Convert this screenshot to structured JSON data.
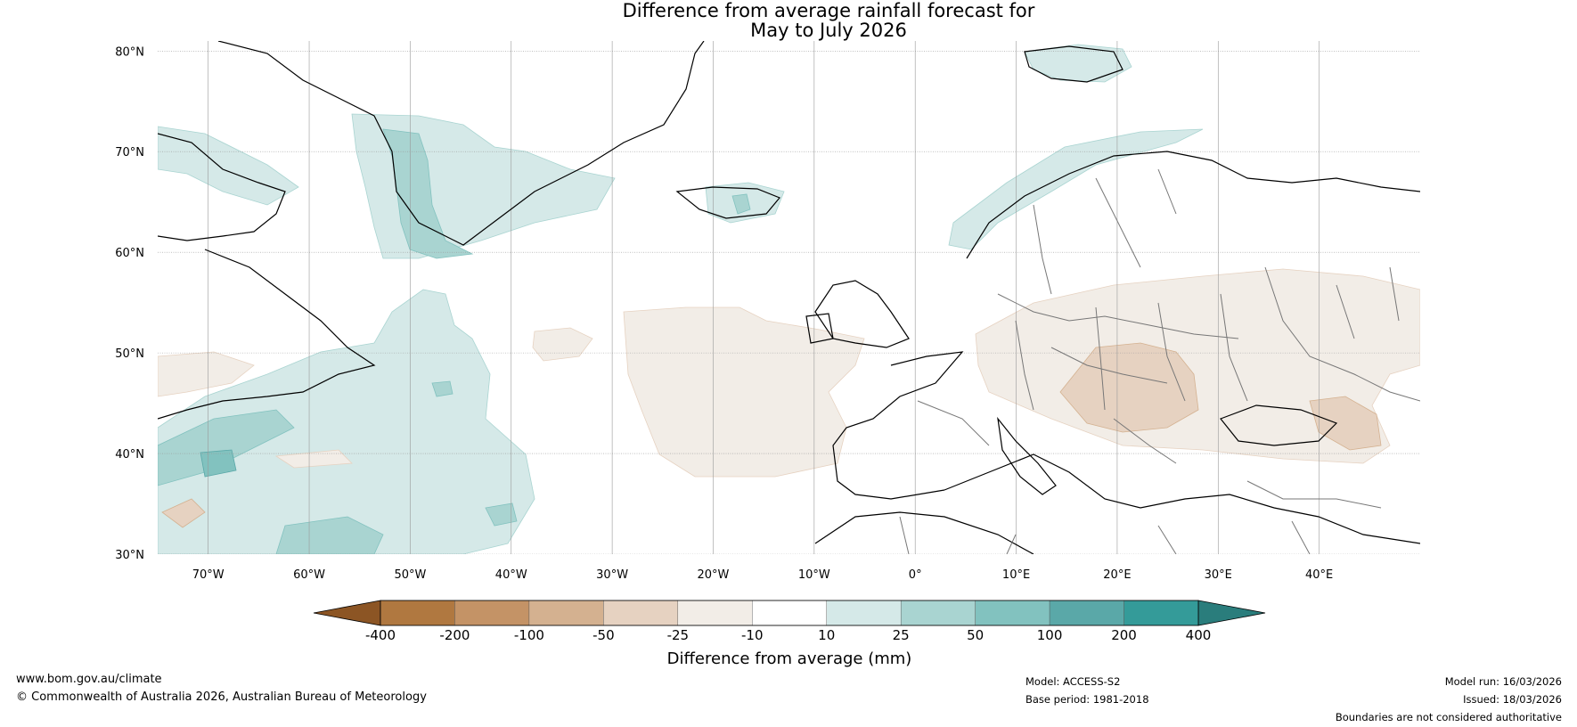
{
  "title": {
    "line1": "Difference from average rainfall forecast for",
    "line2": "May to July 2026"
  },
  "map": {
    "lat_labels": [
      "80°N",
      "70°N",
      "60°N",
      "50°N",
      "40°N",
      "30°N"
    ],
    "lat_values": [
      80,
      70,
      60,
      50,
      40,
      30
    ],
    "lon_labels": [
      "70°W",
      "60°W",
      "50°W",
      "40°W",
      "30°W",
      "20°W",
      "10°W",
      "0°",
      "10°E",
      "20°E",
      "30°E",
      "40°E"
    ],
    "lon_values": [
      -70,
      -60,
      -50,
      -40,
      -30,
      -20,
      -10,
      0,
      10,
      20,
      30,
      40
    ],
    "extent": {
      "lon_min": -75,
      "lon_max": 50,
      "lat_min": 30,
      "lat_max": 81
    },
    "gridlines": true
  },
  "colorbar": {
    "label": "Difference from average (mm)",
    "tick_labels": [
      "-400",
      "-200",
      "-100",
      "-50",
      "-25",
      "-10",
      "10",
      "25",
      "50",
      "100",
      "200",
      "400"
    ],
    "colors": [
      "#8c5524",
      "#b07840",
      "#c49366",
      "#d4b190",
      "#e6d2c1",
      "#f2ede7",
      "#ffffff",
      "#d5e9e8",
      "#a9d4d1",
      "#82c2bf",
      "#5aa8a8",
      "#349b99",
      "#2a7d7c"
    ],
    "extend": "both"
  },
  "legend_colors": {
    "dry_light": "#f2ede7",
    "dry_mid": "#e6d2c1",
    "dry_strong": "#d4b190",
    "wet_light": "#d5e9e8",
    "wet_mid": "#a9d4d1",
    "wet_strong": "#82c2bf"
  },
  "footer": {
    "website": "www.bom.gov.au/climate",
    "copyright": "© Commonwealth of Australia 2026, Australian Bureau of Meteorology",
    "model": "Model: ACCESS-S2",
    "base_period": "Base period: 1981-2018",
    "model_run": "Model run: 16/03/2026",
    "issued": "Issued: 18/03/2026",
    "disclaimer": "Boundaries are not considered authoritative"
  }
}
